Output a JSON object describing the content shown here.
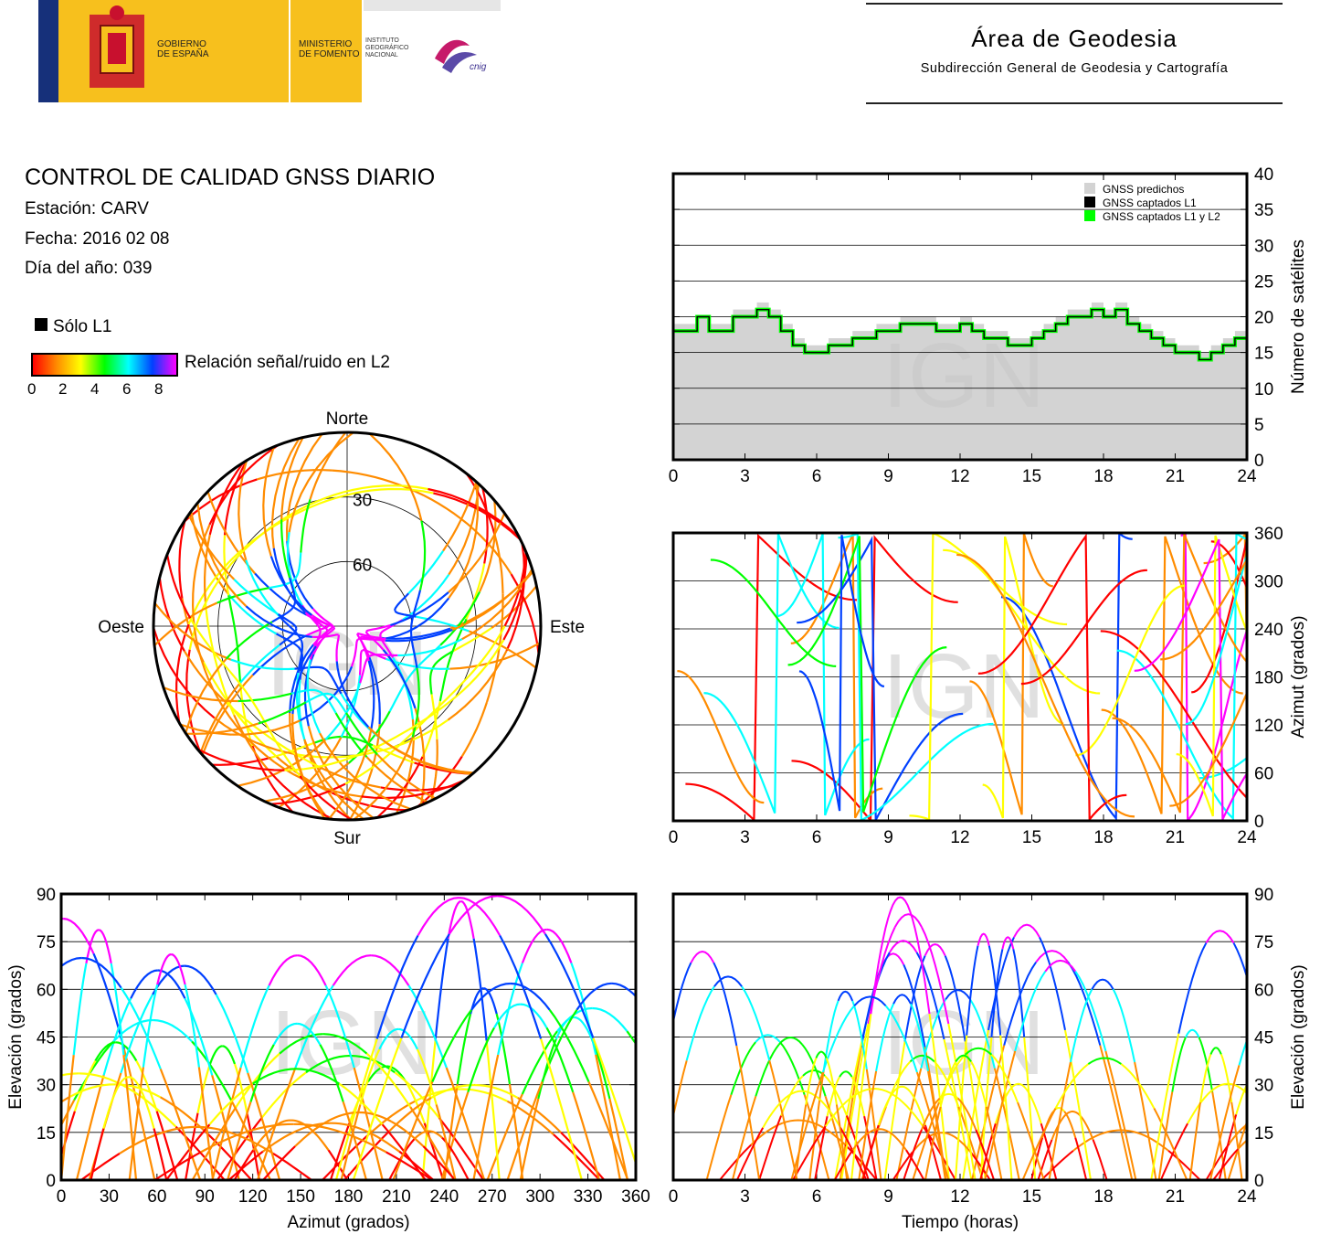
{
  "header": {
    "gobierno": [
      "GOBIERNO",
      "DE ESPAÑA"
    ],
    "ministerio": [
      "MINISTERIO",
      "DE FOMENTO"
    ],
    "instituto": [
      "INSTITUTO",
      "GEOGRÁFICO",
      "NACIONAL"
    ],
    "cnig": "cnig",
    "area_title": "Área de Geodesia",
    "area_subtitle": "Subdirección General de Geodesia y Cartografía"
  },
  "report": {
    "title": "CONTROL DE CALIDAD GNSS DIARIO",
    "station": "Estación: CARV",
    "date": "Fecha: 2016 02 08",
    "doy": "Día del año: 039"
  },
  "legend": {
    "solo_l1": "Sólo L1",
    "snr_label": "Relación señal/ruido en L2",
    "snr_ticks": [
      "0",
      "2",
      "4",
      "6",
      "8"
    ],
    "snr_colors": [
      "#ff0000",
      "#ff8c00",
      "#ffff00",
      "#00ff00",
      "#00ffff",
      "#0040ff",
      "#ff00ff"
    ]
  },
  "watermark": "IGN",
  "chart_data": [
    {
      "type": "area",
      "ylabel": "Número de satélites",
      "xlim": [
        0,
        24
      ],
      "ylim": [
        0,
        40
      ],
      "xticks": [
        "0",
        "3",
        "6",
        "9",
        "12",
        "15",
        "18",
        "21",
        "24"
      ],
      "yticks": [
        "0",
        "5",
        "10",
        "15",
        "20",
        "25",
        "30",
        "35",
        "40"
      ],
      "legend": [
        "GNSS predichos",
        "GNSS captados L1",
        "GNSS captados L1 y L2"
      ],
      "series_colors": [
        "#d3d3d3",
        "#000000",
        "#00ff00"
      ],
      "x": [
        0,
        0.5,
        1,
        1.5,
        2,
        2.5,
        3,
        3.5,
        4,
        4.5,
        5,
        5.5,
        6,
        6.5,
        7,
        7.5,
        8,
        8.5,
        9,
        9.5,
        10,
        10.5,
        11,
        11.5,
        12,
        12.5,
        13,
        13.5,
        14,
        14.5,
        15,
        15.5,
        16,
        16.5,
        17,
        17.5,
        18,
        18.5,
        19,
        19.5,
        20,
        20.5,
        21,
        21.5,
        22,
        22.5,
        23,
        23.5,
        24
      ],
      "predicted": [
        19,
        19,
        20,
        19,
        19,
        21,
        21,
        22,
        21,
        19,
        17,
        16,
        16,
        17,
        17,
        18,
        18,
        19,
        19,
        20,
        20,
        20,
        19,
        19,
        20,
        19,
        18,
        18,
        17,
        17,
        18,
        19,
        20,
        21,
        21,
        22,
        21,
        22,
        20,
        19,
        18,
        17,
        16,
        16,
        15,
        16,
        17,
        18,
        18
      ],
      "captured": [
        18,
        18,
        20,
        18,
        18,
        20,
        20,
        21,
        20,
        18,
        16,
        15,
        15,
        16,
        16,
        17,
        17,
        18,
        18,
        19,
        19,
        19,
        18,
        18,
        19,
        18,
        17,
        17,
        16,
        16,
        17,
        18,
        19,
        20,
        20,
        21,
        20,
        21,
        19,
        18,
        17,
        16,
        15,
        15,
        14,
        15,
        16,
        17,
        17
      ]
    },
    {
      "type": "scatter",
      "ylabel": "Azimut (grados)",
      "xlim": [
        0,
        24
      ],
      "ylim": [
        0,
        360
      ],
      "xticks": [
        "0",
        "3",
        "6",
        "9",
        "12",
        "15",
        "18",
        "21",
        "24"
      ],
      "yticks": [
        "0",
        "60",
        "120",
        "180",
        "240",
        "300",
        "360"
      ]
    },
    {
      "type": "scatter",
      "xlabel": "Azimut (grados)",
      "ylabel": "Elevación (grados)",
      "xlim": [
        0,
        360
      ],
      "ylim": [
        0,
        90
      ],
      "xticks": [
        "0",
        "30",
        "60",
        "90",
        "120",
        "150",
        "180",
        "210",
        "240",
        "270",
        "300",
        "330",
        "360"
      ],
      "yticks": [
        "0",
        "15",
        "30",
        "45",
        "60",
        "75",
        "90"
      ]
    },
    {
      "type": "scatter",
      "xlabel": "Tiempo (horas)",
      "ylabel": "Elevación (grados)",
      "xlim": [
        0,
        24
      ],
      "ylim": [
        0,
        90
      ],
      "xticks": [
        "0",
        "3",
        "6",
        "9",
        "12",
        "15",
        "18",
        "21",
        "24"
      ],
      "yticks": [
        "0",
        "15",
        "30",
        "45",
        "60",
        "75",
        "90"
      ]
    },
    {
      "type": "scatter",
      "labels": {
        "north": "Norte",
        "south": "Sur",
        "east": "Este",
        "west": "Oeste"
      },
      "rings": [
        "30",
        "60"
      ]
    }
  ]
}
